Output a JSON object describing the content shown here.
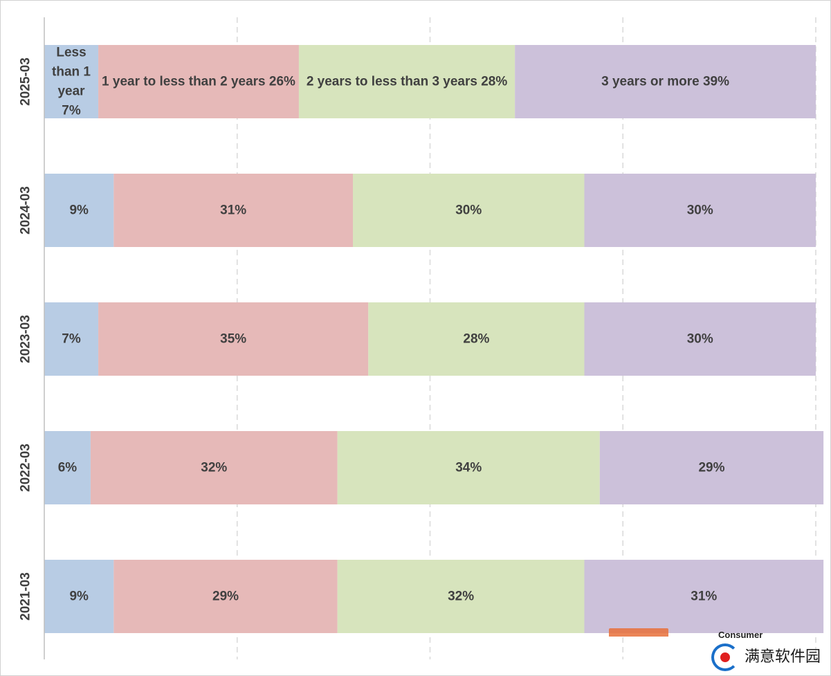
{
  "chart_data": {
    "type": "bar",
    "orientation": "horizontal",
    "stacked": "percent",
    "categories": [
      "2025-03",
      "2024-03",
      "2023-03",
      "2022-03",
      "2021-03"
    ],
    "series": [
      {
        "name": "Less than 1 year",
        "color": "#b8cce4",
        "values": [
          7,
          9,
          7,
          6,
          9
        ],
        "labels": [
          "Less than 1 year 7%",
          "9%",
          "7%",
          "6%",
          "9%"
        ]
      },
      {
        "name": "1 year to less than 2 years",
        "color": "#e6b9b8",
        "values": [
          26,
          31,
          35,
          32,
          29
        ],
        "labels": [
          "1 year to less than 2 years 26%",
          "31%",
          "35%",
          "32%",
          "29%"
        ]
      },
      {
        "name": "2 years to less than 3 years",
        "color": "#d7e4bd",
        "values": [
          28,
          30,
          28,
          34,
          32
        ],
        "labels": [
          "2 years to less than 3 years 28%",
          "30%",
          "28%",
          "34%",
          "32%"
        ]
      },
      {
        "name": "3 years or more",
        "color": "#ccc1da",
        "values": [
          39,
          30,
          30,
          29,
          31
        ],
        "labels": [
          "3 years or more 39%",
          "30%",
          "30%",
          "29%",
          "31%"
        ]
      }
    ],
    "xlim": [
      0,
      100
    ],
    "gridlines": {
      "vertical": true,
      "style": "dashed",
      "color": "#d9d9d9"
    },
    "legend": "none"
  },
  "watermark": {
    "badge": "Consumer",
    "text": "满意软件园"
  }
}
